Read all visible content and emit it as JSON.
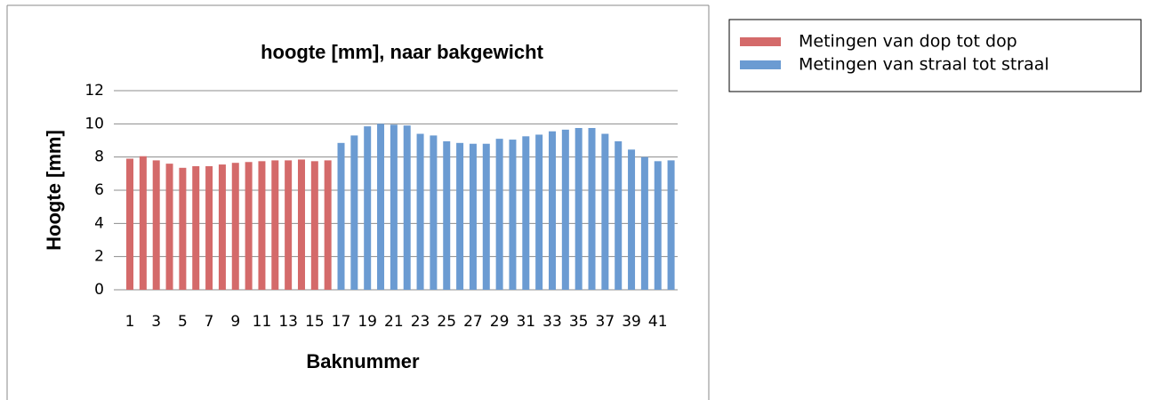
{
  "chart_data": {
    "type": "bar",
    "title": "hoogte [mm], naar bakgewicht",
    "x_label": "Baknummer",
    "y_label": "Hoogte [mm]",
    "categories": [
      "1",
      null,
      "3",
      null,
      "5",
      null,
      "7",
      null,
      "9",
      null,
      "11",
      null,
      "13",
      null,
      "15",
      null,
      "17",
      null,
      "19",
      null,
      "21",
      null,
      "23",
      null,
      "25",
      null,
      "27",
      null,
      "29",
      null,
      "31",
      null,
      "33",
      null,
      "35",
      null,
      "37",
      null,
      "39",
      null,
      "41",
      null
    ],
    "series": [
      {
        "name": "Metingen van dop tot dop",
        "color": "#d46a6a",
        "values": [
          7.9,
          8.05,
          7.8,
          7.6,
          7.35,
          7.45,
          7.45,
          7.55,
          7.65,
          7.7,
          7.75,
          7.8,
          7.8,
          7.85,
          7.75,
          7.8,
          null,
          null,
          null,
          null,
          null,
          null,
          null,
          null,
          null,
          null,
          null,
          null,
          null,
          null,
          null,
          null,
          null,
          null,
          null,
          null,
          null,
          null,
          null,
          null,
          null,
          null
        ]
      },
      {
        "name": "Metingen van straal tot straal",
        "color": "#6b9bd2",
        "values": [
          null,
          null,
          null,
          null,
          null,
          null,
          null,
          null,
          null,
          null,
          null,
          null,
          null,
          null,
          null,
          null,
          8.85,
          9.3,
          9.85,
          10.0,
          9.95,
          9.9,
          9.4,
          9.3,
          8.95,
          8.85,
          8.8,
          8.8,
          9.1,
          9.05,
          9.25,
          9.35,
          9.55,
          9.65,
          9.75,
          9.75,
          9.4,
          8.95,
          8.45,
          8.0,
          7.75,
          7.8
        ]
      }
    ],
    "ylim": [
      0,
      12
    ],
    "yticks": [
      0,
      2,
      4,
      6,
      8,
      10,
      12
    ],
    "grid": true,
    "legend": "right"
  }
}
